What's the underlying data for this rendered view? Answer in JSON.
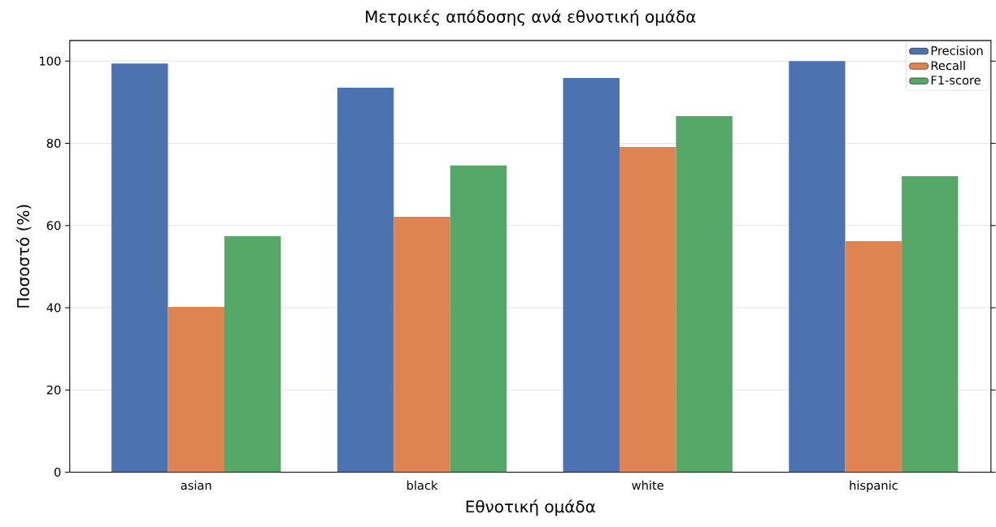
{
  "chart_data": {
    "type": "bar",
    "title": "Μετρικές απόδοσης ανά εθνοτική ομάδα",
    "xlabel": "Εθνοτική ομάδα",
    "ylabel": "Ποσοστό (%)",
    "categories": [
      "asian",
      "black",
      "white",
      "hispanic"
    ],
    "series": [
      {
        "name": "Precision",
        "color": "#4c72b0",
        "values": [
          99.4,
          93.5,
          95.9,
          100
        ]
      },
      {
        "name": "Recall",
        "color": "#dd8452",
        "values": [
          40.2,
          62.1,
          79.1,
          56.2
        ]
      },
      {
        "name": "F1-score",
        "color": "#55a868",
        "values": [
          57.4,
          74.6,
          86.6,
          72.0
        ]
      }
    ],
    "ylim": [
      0,
      105
    ],
    "yticks": [
      0,
      20,
      40,
      60,
      80,
      100
    ],
    "grid": "y",
    "legend": "top right"
  }
}
